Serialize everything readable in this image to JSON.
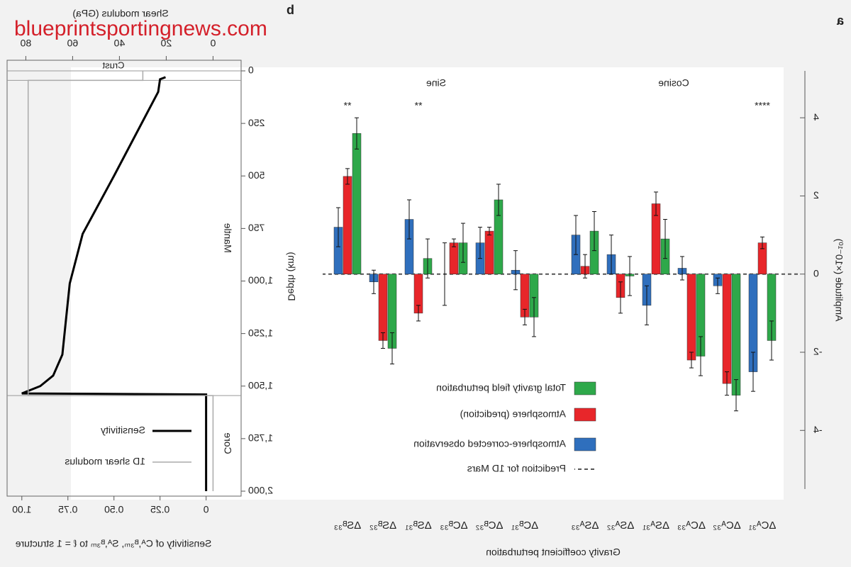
{
  "watermark": "blueprintsportingnews.com",
  "chart_data": [
    {
      "type": "bar",
      "panel_label": "a",
      "x_label": "Gravity coefficient perturbation",
      "y_label": "Amplitude (×10⁻¹⁰)",
      "categories": [
        "ΔCᴬ₃₁",
        "ΔCᴬ₃₂",
        "ΔCᴬ₃₃",
        "ΔSᴬ₃₁",
        "ΔSᴬ₃₂",
        "ΔSᴬ₃₃",
        "ΔCᴮ₃₁",
        "ΔCᴮ₃₂",
        "ΔCᴮ₃₃",
        "ΔSᴮ₃₁",
        "ΔSᴮ₃₂",
        "ΔSᴮ₃₃"
      ],
      "group_labels": [
        "Cosine",
        "Sine"
      ],
      "significance": [
        "****",
        null,
        null,
        null,
        null,
        null,
        null,
        null,
        null,
        "**",
        null,
        "**"
      ],
      "series": [
        {
          "name": "Atmosphere-corrected observation",
          "color": "#2f6fbd",
          "values": [
            -2.5,
            -0.3,
            0.15,
            -0.8,
            0.5,
            1.0,
            0.1,
            0.8,
            0.0,
            1.4,
            -0.2,
            1.2
          ],
          "errors": [
            0.5,
            0.2,
            0.3,
            0.5,
            0.5,
            0.5,
            0.5,
            0.4,
            0.8,
            0.5,
            0.3,
            0.5
          ]
        },
        {
          "name": "Atmosphere (prediction)",
          "color": "#e8262a",
          "values": [
            0.8,
            -2.8,
            -2.2,
            1.8,
            -0.6,
            0.2,
            -1.1,
            1.1,
            0.8,
            -1.0,
            -1.7,
            2.5
          ],
          "errors": [
            0.15,
            0.3,
            0.2,
            0.3,
            0.4,
            0.3,
            0.2,
            0.1,
            0.1,
            0.2,
            0.2,
            0.2
          ]
        },
        {
          "name": "Total gravity field perturbation",
          "color": "#2ea84a",
          "values": [
            -1.7,
            -3.1,
            -2.1,
            0.9,
            -0.05,
            1.1,
            -1.1,
            1.9,
            0.8,
            0.4,
            -1.9,
            3.6
          ],
          "errors": [
            0.5,
            0.4,
            0.5,
            0.5,
            0.5,
            0.5,
            0.5,
            0.4,
            0.5,
            0.5,
            0.4,
            0.4
          ]
        }
      ],
      "reference": {
        "name": "Prediction for 1D Mars",
        "value": 0
      },
      "ylim": [
        -5.5,
        5.2
      ],
      "yticks": [
        -4,
        -2,
        0,
        2,
        4
      ],
      "legend": "lower center"
    },
    {
      "type": "line",
      "panel_label": "b",
      "x_label": "Sensitivity of Cᴬ,ᴮ₃ₘ, Sᴬ,ᴮ₃ₘ to ℓ = 1 structure",
      "x2_label": "Shear modulus (GPa)",
      "y_label": "Depth (km)",
      "regions": [
        "Crust",
        "Mantle",
        "Core"
      ],
      "boundaries": [
        45,
        1545
      ],
      "series": [
        {
          "name": "Sensitivity",
          "color": "#000000",
          "values": [
            0.22,
            0.25,
            0.26,
            0.35,
            0.5,
            0.67,
            0.74,
            0.76,
            0.78,
            0.83,
            0.9,
            1.0,
            0,
            0
          ],
          "depth": [
            30,
            40,
            100,
            250,
            500,
            776,
            1012,
            1180,
            1350,
            1450,
            1500,
            1535,
            1540,
            2000
          ]
        },
        {
          "name": "1D shear modulus",
          "color": "#aaaaaa",
          "axis": "x2",
          "values": [
            30,
            30,
            79,
            79,
            0,
            0
          ],
          "depth": [
            0,
            45,
            45,
            1545,
            1545,
            2000
          ]
        }
      ],
      "xlim": [
        -0.19,
        1.08
      ],
      "xticks": [
        {
          "value": 1,
          "label": "1.00"
        },
        0.75,
        {
          "value": 0.5,
          "label": "0.50"
        },
        0.25,
        0
      ],
      "x2lim": [
        -12,
        88
      ],
      "x2ticks": [
        80,
        60,
        40,
        20,
        0
      ],
      "ylim": [
        0,
        2000
      ],
      "y_inverted": true,
      "yticks": [
        0,
        250,
        500,
        750,
        {
          "value": 1000,
          "label": "1,000"
        },
        {
          "value": 1250,
          "label": "1,250"
        },
        {
          "value": 1500,
          "label": "1,500"
        },
        {
          "value": 1750,
          "label": "1,750"
        },
        {
          "value": 2000,
          "label": "2,000"
        }
      ],
      "legend": "lower right"
    }
  ]
}
